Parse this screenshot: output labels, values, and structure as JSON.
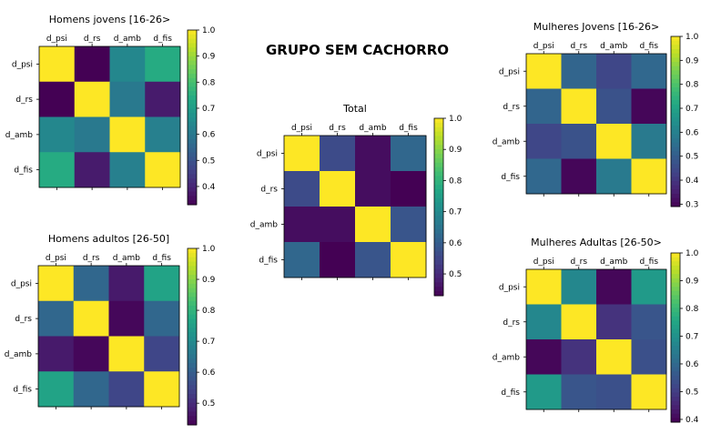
{
  "page_title": "GRUPO SEM CACHORRO",
  "chart_data": [
    {
      "type": "heatmap",
      "title": "Homens jovens [16-26>",
      "labels": [
        "d_psi",
        "d_rs",
        "d_amb",
        "d_fis"
      ],
      "matrix": [
        [
          1.0,
          0.33,
          0.64,
          0.74
        ],
        [
          0.33,
          1.0,
          0.6,
          0.38
        ],
        [
          0.64,
          0.6,
          1.0,
          0.62
        ],
        [
          0.74,
          0.38,
          0.62,
          1.0
        ]
      ],
      "colorbar": {
        "min": 0.33,
        "max": 1.0,
        "ticks": [
          0.4,
          0.5,
          0.6,
          0.7,
          0.8,
          0.9,
          1.0
        ],
        "tick_labels": [
          "0.4",
          "0.5",
          "0.6",
          "0.7",
          "0.8",
          "0.9",
          "1.0"
        ]
      },
      "colormap": "viridis"
    },
    {
      "type": "heatmap",
      "title": "Mulheres Jovens [16-26>",
      "labels": [
        "d_psi",
        "d_rs",
        "d_amb",
        "d_fis"
      ],
      "matrix": [
        [
          1.0,
          0.52,
          0.44,
          0.53
        ],
        [
          0.52,
          1.0,
          0.47,
          0.3
        ],
        [
          0.44,
          0.47,
          1.0,
          0.58
        ],
        [
          0.53,
          0.3,
          0.58,
          1.0
        ]
      ],
      "colorbar": {
        "min": 0.29,
        "max": 1.0,
        "ticks": [
          0.3,
          0.4,
          0.5,
          0.6,
          0.7,
          0.8,
          0.9,
          1.0
        ],
        "tick_labels": [
          "0.3",
          "0.4",
          "0.5",
          "0.6",
          "0.7",
          "0.8",
          "0.9",
          "1.0"
        ]
      },
      "colormap": "viridis"
    },
    {
      "type": "heatmap",
      "title": "Total",
      "labels": [
        "d_psi",
        "d_rs",
        "d_amb",
        "d_fis"
      ],
      "matrix": [
        [
          1.0,
          0.56,
          0.45,
          0.62
        ],
        [
          0.56,
          1.0,
          0.45,
          0.43
        ],
        [
          0.45,
          0.45,
          1.0,
          0.58
        ],
        [
          0.62,
          0.43,
          0.58,
          1.0
        ]
      ],
      "colorbar": {
        "min": 0.43,
        "max": 1.0,
        "ticks": [
          0.5,
          0.6,
          0.7,
          0.8,
          0.9,
          1.0
        ],
        "tick_labels": [
          "0.5",
          "0.6",
          "0.7",
          "0.8",
          "0.9",
          "1.0"
        ]
      },
      "colormap": "viridis"
    },
    {
      "type": "heatmap",
      "title": "Homens adultos [26-50]",
      "labels": [
        "d_psi",
        "d_rs",
        "d_amb",
        "d_fis"
      ],
      "matrix": [
        [
          1.0,
          0.62,
          0.47,
          0.76
        ],
        [
          0.62,
          1.0,
          0.44,
          0.62
        ],
        [
          0.47,
          0.44,
          1.0,
          0.55
        ],
        [
          0.76,
          0.62,
          0.55,
          1.0
        ]
      ],
      "colorbar": {
        "min": 0.43,
        "max": 1.0,
        "ticks": [
          0.5,
          0.6,
          0.7,
          0.8,
          0.9,
          1.0
        ],
        "tick_labels": [
          "0.5",
          "0.6",
          "0.7",
          "0.8",
          "0.9",
          "1.0"
        ]
      },
      "colormap": "viridis"
    },
    {
      "type": "heatmap",
      "title": "Mulheres Adultas [26-50>",
      "labels": [
        "d_psi",
        "d_rs",
        "d_amb",
        "d_fis"
      ],
      "matrix": [
        [
          1.0,
          0.67,
          0.4,
          0.72
        ],
        [
          0.67,
          1.0,
          0.48,
          0.55
        ],
        [
          0.4,
          0.48,
          1.0,
          0.54
        ],
        [
          0.72,
          0.55,
          0.54,
          1.0
        ]
      ],
      "colorbar": {
        "min": 0.39,
        "max": 1.0,
        "ticks": [
          0.4,
          0.5,
          0.6,
          0.7,
          0.8,
          0.9,
          1.0
        ],
        "tick_labels": [
          "0.4",
          "0.5",
          "0.6",
          "0.7",
          "0.8",
          "0.9",
          "1.0"
        ]
      },
      "colormap": "viridis"
    }
  ]
}
